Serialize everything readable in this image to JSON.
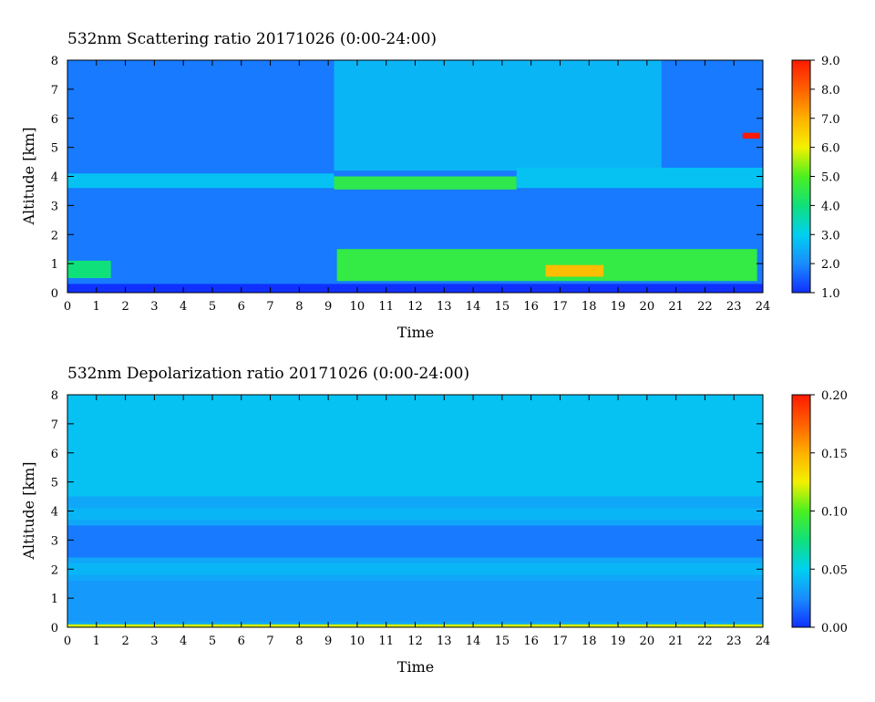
{
  "chart_data": [
    {
      "type": "heatmap",
      "title": "532nm Scattering ratio  20171026 (0:00-24:00)",
      "xlabel": "Time",
      "ylabel": "Altitude [km]",
      "xlim": [
        0,
        24
      ],
      "ylim": [
        0,
        8
      ],
      "x_ticks": [
        "0",
        "1",
        "2",
        "3",
        "4",
        "5",
        "6",
        "7",
        "8",
        "9",
        "10",
        "11",
        "12",
        "13",
        "14",
        "15",
        "16",
        "17",
        "18",
        "19",
        "20",
        "21",
        "22",
        "23",
        "24"
      ],
      "y_ticks": [
        "0",
        "1",
        "2",
        "3",
        "4",
        "5",
        "6",
        "7",
        "8"
      ],
      "colorbar": {
        "range": [
          1.0,
          9.0
        ],
        "ticks": [
          "1.0",
          "2.0",
          "3.0",
          "4.0",
          "5.0",
          "6.0",
          "7.0",
          "8.0",
          "9.0"
        ],
        "colors": [
          "#1030ff",
          "#1a8cff",
          "#00d0f0",
          "#10e07a",
          "#4cf020",
          "#f4f000",
          "#ffb000",
          "#ff6000",
          "#ff1a00"
        ]
      },
      "features": [
        {
          "name": "background",
          "value": 1.8,
          "t": [
            0,
            24
          ],
          "alt": [
            0.3,
            8.0
          ]
        },
        {
          "name": "upper-level",
          "value": 2.6,
          "t": [
            9.2,
            20.5
          ],
          "alt": [
            4.2,
            8.0
          ]
        },
        {
          "name": "layer-4km-west",
          "value": 2.8,
          "t": [
            0,
            9.2
          ],
          "alt": [
            3.6,
            4.1
          ]
        },
        {
          "name": "layer-4km-main",
          "value": 4.5,
          "t": [
            9.2,
            15.5
          ],
          "alt": [
            3.55,
            4.0
          ]
        },
        {
          "name": "layer-4km-east",
          "value": 2.8,
          "t": [
            15.5,
            24
          ],
          "alt": [
            3.6,
            4.3
          ]
        },
        {
          "name": "boundary-layer-morning",
          "value": 4.0,
          "t": [
            0,
            1.5
          ],
          "alt": [
            0.5,
            1.1
          ]
        },
        {
          "name": "boundary-layer-afternoon",
          "value": 4.6,
          "t": [
            9.3,
            23.8
          ],
          "alt": [
            0.4,
            1.5
          ]
        },
        {
          "name": "boundary-layer-peak",
          "value": 6.8,
          "t": [
            16.5,
            18.5
          ],
          "alt": [
            0.55,
            0.95
          ]
        },
        {
          "name": "cloud-5.4km",
          "value": 9.0,
          "t": [
            23.3,
            23.9
          ],
          "alt": [
            5.3,
            5.5
          ]
        },
        {
          "name": "surface-gap",
          "value": 1.0,
          "t": [
            0,
            24
          ],
          "alt": [
            0.0,
            0.3
          ]
        }
      ]
    },
    {
      "type": "heatmap",
      "title": "532nm Depolarization ratio  20171026 (0:00-24:00)",
      "xlabel": "Time",
      "ylabel": "Altitude [km]",
      "xlim": [
        0,
        24
      ],
      "ylim": [
        0,
        8
      ],
      "x_ticks": [
        "0",
        "1",
        "2",
        "3",
        "4",
        "5",
        "6",
        "7",
        "8",
        "9",
        "10",
        "11",
        "12",
        "13",
        "14",
        "15",
        "16",
        "17",
        "18",
        "19",
        "20",
        "21",
        "22",
        "23",
        "24"
      ],
      "y_ticks": [
        "0",
        "1",
        "2",
        "3",
        "4",
        "5",
        "6",
        "7",
        "8"
      ],
      "colorbar": {
        "range": [
          0.0,
          0.2
        ],
        "ticks": [
          "0.00",
          "0.05",
          "0.10",
          "0.15",
          "0.20"
        ],
        "colors": [
          "#1030ff",
          "#1a8cff",
          "#00d0f0",
          "#10e07a",
          "#4cf020",
          "#f4f000",
          "#ffb000",
          "#ff6000",
          "#ff1a00"
        ]
      },
      "features": [
        {
          "name": "background",
          "value": 0.035,
          "t": [
            0,
            24
          ],
          "alt": [
            0.1,
            8.0
          ]
        },
        {
          "name": "noisy-upper",
          "value": 0.045,
          "t": [
            0,
            24
          ],
          "alt": [
            4.5,
            8.0
          ]
        },
        {
          "name": "layer-3.8km",
          "value": 0.04,
          "t": [
            0,
            24
          ],
          "alt": [
            3.7,
            4.1
          ]
        },
        {
          "name": "clean-3km",
          "value": 0.02,
          "t": [
            0,
            24
          ],
          "alt": [
            2.4,
            3.5
          ]
        },
        {
          "name": "layer-2km",
          "value": 0.04,
          "t": [
            0,
            24
          ],
          "alt": [
            1.8,
            2.2
          ]
        },
        {
          "name": "boundary-layer",
          "value": 0.03,
          "t": [
            0,
            24
          ],
          "alt": [
            0.2,
            1.6
          ]
        },
        {
          "name": "surface",
          "value": 0.12,
          "t": [
            0,
            24
          ],
          "alt": [
            0.0,
            0.1
          ]
        }
      ]
    }
  ]
}
